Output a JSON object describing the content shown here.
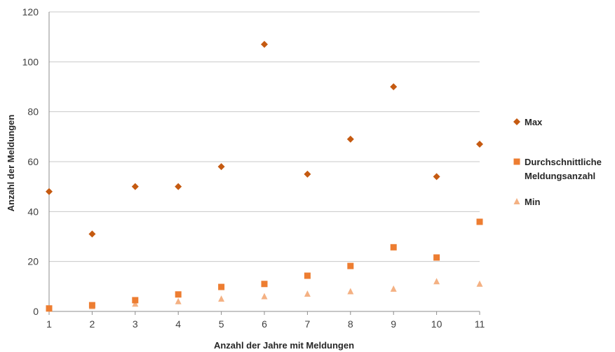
{
  "chart_data": {
    "type": "scatter",
    "xlabel": "Anzahl der Jahre mit Meldungen",
    "ylabel": "Anzahl der Meldungen",
    "xlim": [
      1,
      11
    ],
    "ylim": [
      0,
      120
    ],
    "x_ticks": [
      1,
      2,
      3,
      4,
      5,
      6,
      7,
      8,
      9,
      10,
      11
    ],
    "y_ticks": [
      0,
      20,
      40,
      60,
      80,
      100,
      120
    ],
    "grid": "horizontal",
    "legend_position": "right",
    "x": [
      1,
      2,
      3,
      4,
      5,
      6,
      7,
      8,
      9,
      10,
      11
    ],
    "series": [
      {
        "name": "Max",
        "marker": "diamond",
        "color": "#c55a11",
        "values": [
          48,
          31,
          50,
          50,
          58,
          107,
          55,
          69,
          90,
          54,
          67
        ]
      },
      {
        "name": "Durchschnittliche Meldungsanzahl",
        "name_lines": [
          "Durchschnittliche",
          "Meldungsanzahl"
        ],
        "marker": "square",
        "color": "#ed7d31",
        "values": [
          1.2,
          2.5,
          4.5,
          6.8,
          9.8,
          11.0,
          14.3,
          18.2,
          25.7,
          21.6,
          35.9
        ]
      },
      {
        "name": "Min",
        "marker": "triangle",
        "color": "#f4b183",
        "values": [
          1,
          2,
          3,
          4,
          5,
          6,
          7,
          8,
          9,
          12,
          11
        ]
      }
    ]
  }
}
